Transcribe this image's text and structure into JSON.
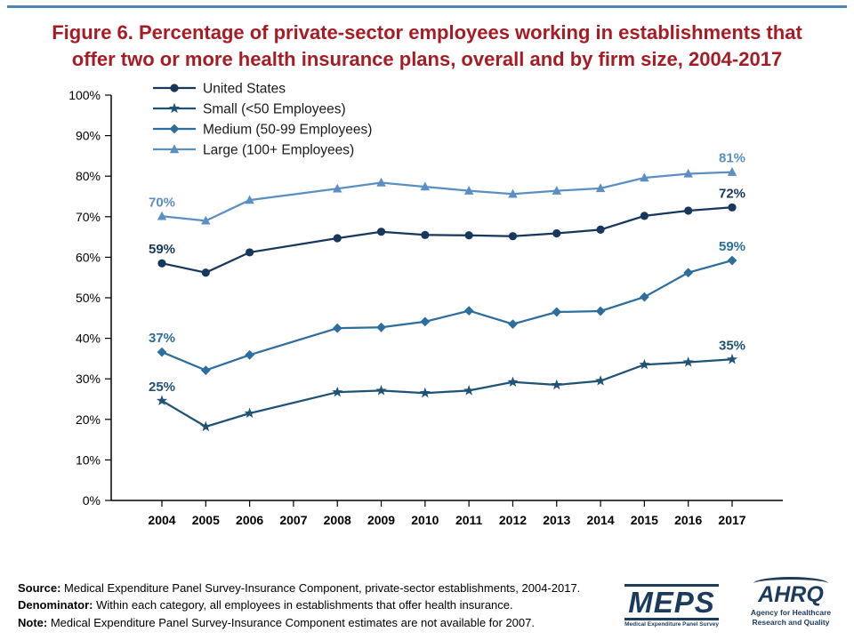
{
  "slide": {
    "title": "Figure 6. Percentage of private-sector employees working in establishments that offer two or more health insurance plans, overall and by firm size, 2004-2017"
  },
  "footer": {
    "source_label": "Source:",
    "source_text": "Medical Expenditure Panel Survey-Insurance Component, private-sector establishments, 2004-2017.",
    "denominator_label": "Denominator:",
    "denominator_text": "Within each category, all employees in establishments that offer health insurance.",
    "note_label": "Note:",
    "note_text": "Medical Expenditure Panel Survey-Insurance Component estimates are not available for 2007."
  },
  "logos": {
    "meps_text": "MEPS",
    "meps_subtext": "Medical Expenditure Panel Survey",
    "ahrq_text": "AHRQ",
    "ahrq_subtext": "Agency for Healthcare Research and Quality"
  },
  "chart_data": {
    "type": "line",
    "title": "Figure 6. Percentage of private-sector employees working in establishments that offer two or more health insurance plans, overall and by firm size, 2004-2017",
    "x": [
      2004,
      2005,
      2006,
      2007,
      2008,
      2009,
      2010,
      2011,
      2012,
      2013,
      2014,
      2015,
      2016,
      2017
    ],
    "ylim": [
      0,
      100
    ],
    "yticks": [
      0,
      10,
      20,
      30,
      40,
      50,
      60,
      70,
      80,
      90,
      100
    ],
    "ytick_suffix": "%",
    "grid": false,
    "legend_position": "top-left",
    "missing_year": 2007,
    "series": [
      {
        "name": "United States",
        "marker": "circle",
        "color": "#17375D",
        "values": [
          58.5,
          56.2,
          61.2,
          null,
          64.7,
          66.3,
          65.5,
          65.4,
          65.2,
          65.9,
          66.8,
          70.2,
          71.5,
          72.3
        ],
        "first_label": "59%",
        "last_label": "72%"
      },
      {
        "name": "Small (<50 Employees)",
        "marker": "star",
        "color": "#1F5277",
        "values": [
          24.6,
          18.2,
          21.5,
          null,
          26.7,
          27.1,
          26.5,
          27.1,
          29.2,
          28.5,
          29.5,
          33.5,
          34.1,
          34.8
        ],
        "first_label": "25%",
        "last_label": "35%"
      },
      {
        "name": "Medium (50-99 Employees)",
        "marker": "diamond",
        "color": "#2E6E9E",
        "values": [
          36.6,
          32.1,
          35.9,
          null,
          42.5,
          42.7,
          44.1,
          46.8,
          43.5,
          46.5,
          46.7,
          50.2,
          56.2,
          59.2
        ],
        "first_label": "37%",
        "last_label": "59%"
      },
      {
        "name": "Large (100+ Employees)",
        "marker": "triangle",
        "color": "#5B8FC3",
        "values": [
          70.1,
          69.0,
          74.1,
          null,
          76.9,
          78.4,
          77.4,
          76.4,
          75.6,
          76.4,
          77.0,
          79.6,
          80.6,
          81.0
        ],
        "first_label": "70%",
        "last_label": "81%"
      }
    ]
  }
}
